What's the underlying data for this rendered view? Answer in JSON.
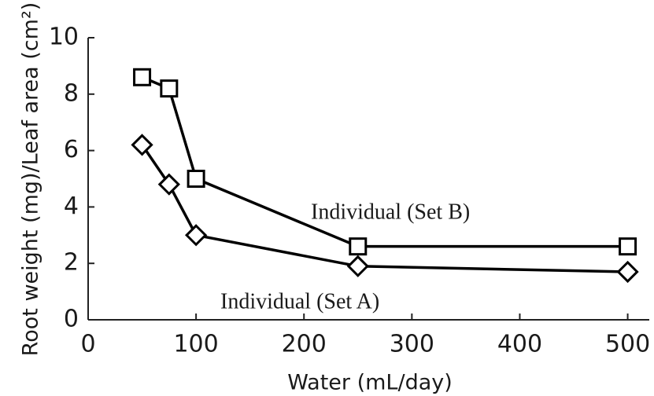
{
  "chart_data": {
    "type": "line",
    "x_label": "Water (mL/day)",
    "y_label": "Root weight (mg)/Leaf area (cm²)",
    "annotations": [
      "Individual (Set B)",
      "Individual (Set A)"
    ],
    "x": [
      50,
      75,
      100,
      250,
      500
    ],
    "series": [
      {
        "name": "Individual (Set B)",
        "marker": "square",
        "color": "#000000",
        "values": [
          8.6,
          8.2,
          5.0,
          2.6,
          2.6
        ]
      },
      {
        "name": "Individual (Set A)",
        "marker": "diamond",
        "color": "#000000",
        "values": [
          6.2,
          4.8,
          3.0,
          1.9,
          1.7
        ]
      }
    ],
    "xlim": [
      0,
      520
    ],
    "ylim": [
      0,
      10
    ],
    "xticks": [
      0,
      100,
      200,
      300,
      400,
      500
    ],
    "yticks": [
      0,
      2,
      4,
      6,
      8,
      10
    ]
  }
}
